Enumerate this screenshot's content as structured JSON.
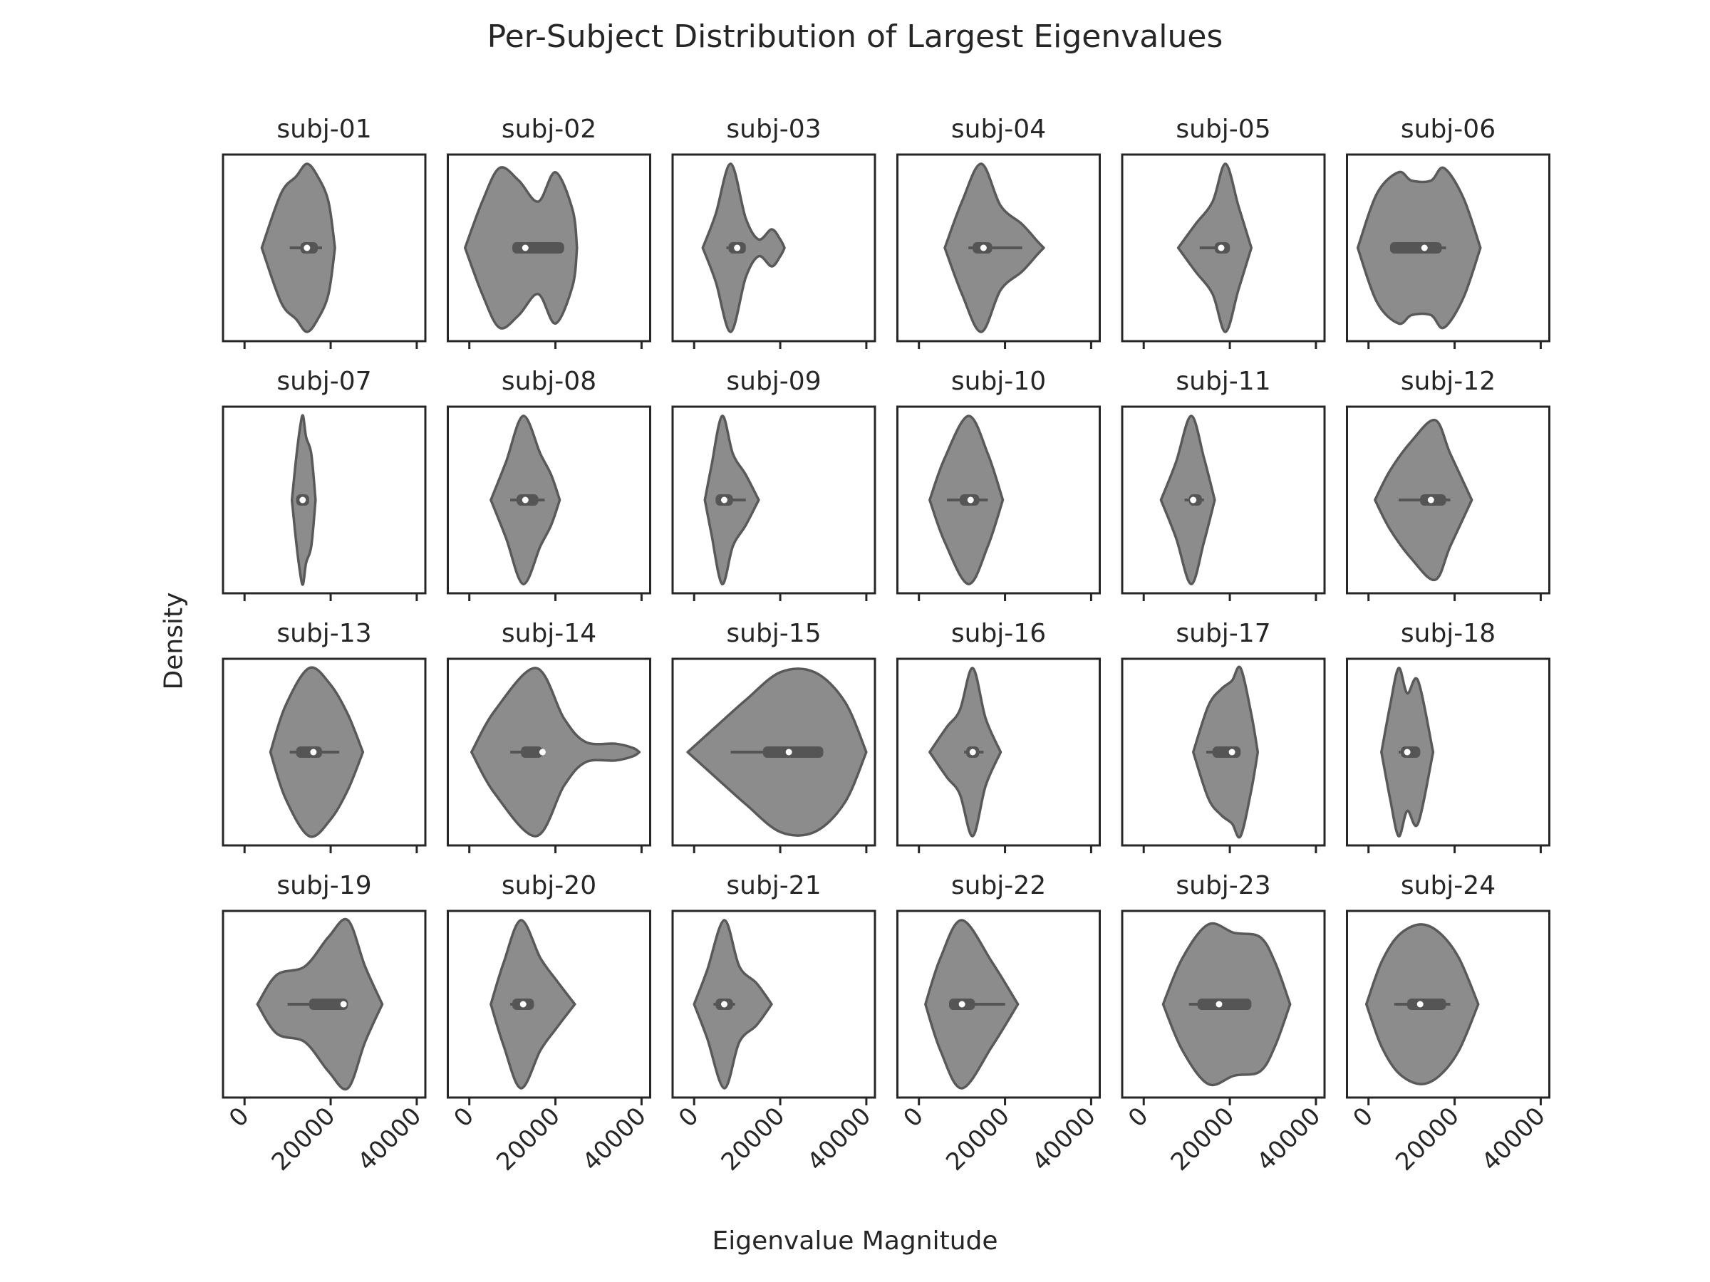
{
  "figure": {
    "title": "Per-Subject Distribution of Largest Eigenvalues",
    "xlabel": "Eigenvalue Magnitude",
    "ylabel": "Density"
  },
  "colors": {
    "violin_fill": "#8c8c8c",
    "violin_edge": "#595959",
    "box": "#555555",
    "median": "#ffffff",
    "frame": "#262626",
    "text": "#262626"
  },
  "chart_data": {
    "type": "violin",
    "layout": "4 rows x 6 columns, shared x axis",
    "xlim": [
      -5000,
      42000
    ],
    "xticks": [
      0,
      20000,
      40000
    ],
    "xtick_labels": [
      "0",
      "20000",
      "40000"
    ],
    "panels": [
      {
        "subject": "subj-01",
        "quartiles": [
          13000,
          17000
        ],
        "median": 14500,
        "whiskers": [
          10500,
          18000
        ],
        "density": [
          [
            4000,
            0
          ],
          [
            8500,
            0.65
          ],
          [
            12000,
            0.85
          ],
          [
            14500,
            1.0
          ],
          [
            17000,
            0.85
          ],
          [
            19500,
            0.55
          ],
          [
            21000,
            0
          ]
        ]
      },
      {
        "subject": "subj-02",
        "quartiles": [
          10000,
          22000
        ],
        "median": 13000,
        "whiskers": [
          10000,
          22000
        ],
        "density": [
          [
            -1000,
            0
          ],
          [
            3000,
            0.55
          ],
          [
            7000,
            0.95
          ],
          [
            11500,
            0.8
          ],
          [
            16000,
            0.55
          ],
          [
            20000,
            0.9
          ],
          [
            24000,
            0.45
          ],
          [
            25000,
            0
          ]
        ]
      },
      {
        "subject": "subj-03",
        "quartiles": [
          8000,
          12000
        ],
        "median": 10000,
        "whiskers": [
          7500,
          12000
        ],
        "density": [
          [
            2000,
            0
          ],
          [
            5000,
            0.4
          ],
          [
            8500,
            1.0
          ],
          [
            12000,
            0.35
          ],
          [
            15000,
            0.1
          ],
          [
            18000,
            0.22
          ],
          [
            20000,
            0.1
          ],
          [
            21000,
            0
          ]
        ]
      },
      {
        "subject": "subj-04",
        "quartiles": [
          12500,
          17000
        ],
        "median": 15000,
        "whiskers": [
          11500,
          24000
        ],
        "density": [
          [
            6000,
            0
          ],
          [
            10000,
            0.55
          ],
          [
            14500,
            1.0
          ],
          [
            19000,
            0.5
          ],
          [
            24000,
            0.28
          ],
          [
            27500,
            0.08
          ],
          [
            29000,
            0
          ]
        ]
      },
      {
        "subject": "subj-05",
        "quartiles": [
          16500,
          20000
        ],
        "median": 18000,
        "whiskers": [
          13000,
          20000
        ],
        "density": [
          [
            8000,
            0
          ],
          [
            12000,
            0.28
          ],
          [
            16000,
            0.55
          ],
          [
            19000,
            1.0
          ],
          [
            22000,
            0.5
          ],
          [
            25000,
            0
          ]
        ]
      },
      {
        "subject": "subj-06",
        "quartiles": [
          5000,
          17000
        ],
        "median": 13000,
        "whiskers": [
          5000,
          18000
        ],
        "density": [
          [
            -2500,
            0
          ],
          [
            2000,
            0.65
          ],
          [
            7000,
            0.9
          ],
          [
            10000,
            0.8
          ],
          [
            14500,
            0.8
          ],
          [
            17500,
            0.95
          ],
          [
            22000,
            0.6
          ],
          [
            26000,
            0
          ]
        ]
      },
      {
        "subject": "subj-07",
        "quartiles": [
          12000,
          15000
        ],
        "median": 13500,
        "whiskers": [
          12000,
          15000
        ],
        "density": [
          [
            11000,
            0
          ],
          [
            12000,
            0.5
          ],
          [
            13000,
            0.9
          ],
          [
            13600,
            1.0
          ],
          [
            14300,
            0.75
          ],
          [
            15500,
            0.55
          ],
          [
            16500,
            0
          ]
        ]
      },
      {
        "subject": "subj-08",
        "quartiles": [
          11000,
          16000
        ],
        "median": 13000,
        "whiskers": [
          9500,
          17500
        ],
        "density": [
          [
            5000,
            0
          ],
          [
            8500,
            0.45
          ],
          [
            12500,
            1.0
          ],
          [
            16500,
            0.55
          ],
          [
            19000,
            0.3
          ],
          [
            21000,
            0
          ]
        ]
      },
      {
        "subject": "subj-09",
        "quartiles": [
          5000,
          9000
        ],
        "median": 7000,
        "whiskers": [
          5000,
          12000
        ],
        "density": [
          [
            2500,
            0
          ],
          [
            4000,
            0.4
          ],
          [
            6500,
            1.0
          ],
          [
            9000,
            0.55
          ],
          [
            12000,
            0.3
          ],
          [
            15000,
            0
          ]
        ]
      },
      {
        "subject": "subj-10",
        "quartiles": [
          9500,
          14000
        ],
        "median": 12000,
        "whiskers": [
          6500,
          16000
        ],
        "density": [
          [
            2500,
            0
          ],
          [
            6000,
            0.5
          ],
          [
            11500,
            1.0
          ],
          [
            16000,
            0.55
          ],
          [
            19500,
            0
          ]
        ]
      },
      {
        "subject": "subj-11",
        "quartiles": [
          10500,
          13500
        ],
        "median": 11500,
        "whiskers": [
          9500,
          14000
        ],
        "density": [
          [
            4000,
            0
          ],
          [
            7500,
            0.45
          ],
          [
            11000,
            1.0
          ],
          [
            14000,
            0.5
          ],
          [
            16500,
            0
          ]
        ]
      },
      {
        "subject": "subj-12",
        "quartiles": [
          12000,
          18000
        ],
        "median": 14500,
        "whiskers": [
          7000,
          19000
        ],
        "density": [
          [
            1500,
            0
          ],
          [
            5000,
            0.35
          ],
          [
            10000,
            0.7
          ],
          [
            15500,
            0.95
          ],
          [
            19000,
            0.55
          ],
          [
            24000,
            0
          ]
        ]
      },
      {
        "subject": "subj-13",
        "quartiles": [
          12000,
          18000
        ],
        "median": 16000,
        "whiskers": [
          10500,
          22000
        ],
        "density": [
          [
            6000,
            0
          ],
          [
            9500,
            0.55
          ],
          [
            15000,
            1.0
          ],
          [
            20000,
            0.8
          ],
          [
            24000,
            0.45
          ],
          [
            27500,
            0
          ]
        ]
      },
      {
        "subject": "subj-14",
        "quartiles": [
          12000,
          17000
        ],
        "median": 17000,
        "whiskers": [
          9500,
          17000
        ],
        "density": [
          [
            500,
            0
          ],
          [
            6000,
            0.5
          ],
          [
            15500,
            1.0
          ],
          [
            22000,
            0.4
          ],
          [
            27000,
            0.12
          ],
          [
            34000,
            0.1
          ],
          [
            38000,
            0.05
          ],
          [
            39500,
            0
          ]
        ]
      },
      {
        "subject": "subj-15",
        "quartiles": [
          16000,
          30000
        ],
        "median": 22000,
        "whiskers": [
          8500,
          30000
        ],
        "density": [
          [
            -1500,
            0
          ],
          [
            5000,
            0.3
          ],
          [
            12000,
            0.62
          ],
          [
            20000,
            0.95
          ],
          [
            28000,
            0.95
          ],
          [
            35000,
            0.6
          ],
          [
            40000,
            0
          ]
        ]
      },
      {
        "subject": "subj-16",
        "quartiles": [
          11000,
          14000
        ],
        "median": 12500,
        "whiskers": [
          10500,
          15000
        ],
        "density": [
          [
            2500,
            0
          ],
          [
            6500,
            0.3
          ],
          [
            9500,
            0.5
          ],
          [
            12500,
            1.0
          ],
          [
            15500,
            0.4
          ],
          [
            19000,
            0
          ]
        ]
      },
      {
        "subject": "subj-17",
        "quartiles": [
          16000,
          22500
        ],
        "median": 20500,
        "whiskers": [
          14500,
          22500
        ],
        "density": [
          [
            11500,
            0
          ],
          [
            15000,
            0.55
          ],
          [
            18000,
            0.75
          ],
          [
            20500,
            0.85
          ],
          [
            22500,
            1.0
          ],
          [
            25000,
            0.45
          ],
          [
            26500,
            0
          ]
        ]
      },
      {
        "subject": "subj-18",
        "quartiles": [
          7500,
          12000
        ],
        "median": 9000,
        "whiskers": [
          7000,
          12000
        ],
        "density": [
          [
            3000,
            0
          ],
          [
            5000,
            0.55
          ],
          [
            7000,
            1.0
          ],
          [
            9000,
            0.7
          ],
          [
            11500,
            0.85
          ],
          [
            15000,
            0
          ]
        ]
      },
      {
        "subject": "subj-19",
        "quartiles": [
          15000,
          24000
        ],
        "median": 23000,
        "whiskers": [
          10000,
          24000
        ],
        "density": [
          [
            3000,
            0
          ],
          [
            7500,
            0.35
          ],
          [
            14000,
            0.45
          ],
          [
            19500,
            0.8
          ],
          [
            24000,
            1.0
          ],
          [
            28000,
            0.45
          ],
          [
            32000,
            0
          ]
        ]
      },
      {
        "subject": "subj-20",
        "quartiles": [
          10000,
          15000
        ],
        "median": 12500,
        "whiskers": [
          9500,
          15000
        ],
        "density": [
          [
            5000,
            0
          ],
          [
            8000,
            0.5
          ],
          [
            12000,
            1.0
          ],
          [
            16500,
            0.55
          ],
          [
            20000,
            0.3
          ],
          [
            24500,
            0
          ]
        ]
      },
      {
        "subject": "subj-21",
        "quartiles": [
          5000,
          9000
        ],
        "median": 7000,
        "whiskers": [
          4500,
          9500
        ],
        "density": [
          [
            0,
            0
          ],
          [
            3000,
            0.4
          ],
          [
            7000,
            1.0
          ],
          [
            10500,
            0.45
          ],
          [
            14500,
            0.25
          ],
          [
            18000,
            0
          ]
        ]
      },
      {
        "subject": "subj-22",
        "quartiles": [
          7000,
          13000
        ],
        "median": 10000,
        "whiskers": [
          7000,
          20000
        ],
        "density": [
          [
            1500,
            0
          ],
          [
            5000,
            0.55
          ],
          [
            10000,
            1.0
          ],
          [
            17000,
            0.5
          ],
          [
            23000,
            0
          ]
        ]
      },
      {
        "subject": "subj-23",
        "quartiles": [
          12500,
          25000
        ],
        "median": 17500,
        "whiskers": [
          10500,
          25000
        ],
        "density": [
          [
            4500,
            0
          ],
          [
            9000,
            0.55
          ],
          [
            15000,
            0.95
          ],
          [
            21000,
            0.85
          ],
          [
            27000,
            0.8
          ],
          [
            30500,
            0.5
          ],
          [
            34000,
            0
          ]
        ]
      },
      {
        "subject": "subj-24",
        "quartiles": [
          9000,
          18000
        ],
        "median": 12000,
        "whiskers": [
          6000,
          19000
        ],
        "density": [
          [
            -500,
            0
          ],
          [
            3000,
            0.5
          ],
          [
            7000,
            0.82
          ],
          [
            12000,
            0.95
          ],
          [
            16500,
            0.85
          ],
          [
            21000,
            0.55
          ],
          [
            25500,
            0
          ]
        ]
      }
    ]
  }
}
